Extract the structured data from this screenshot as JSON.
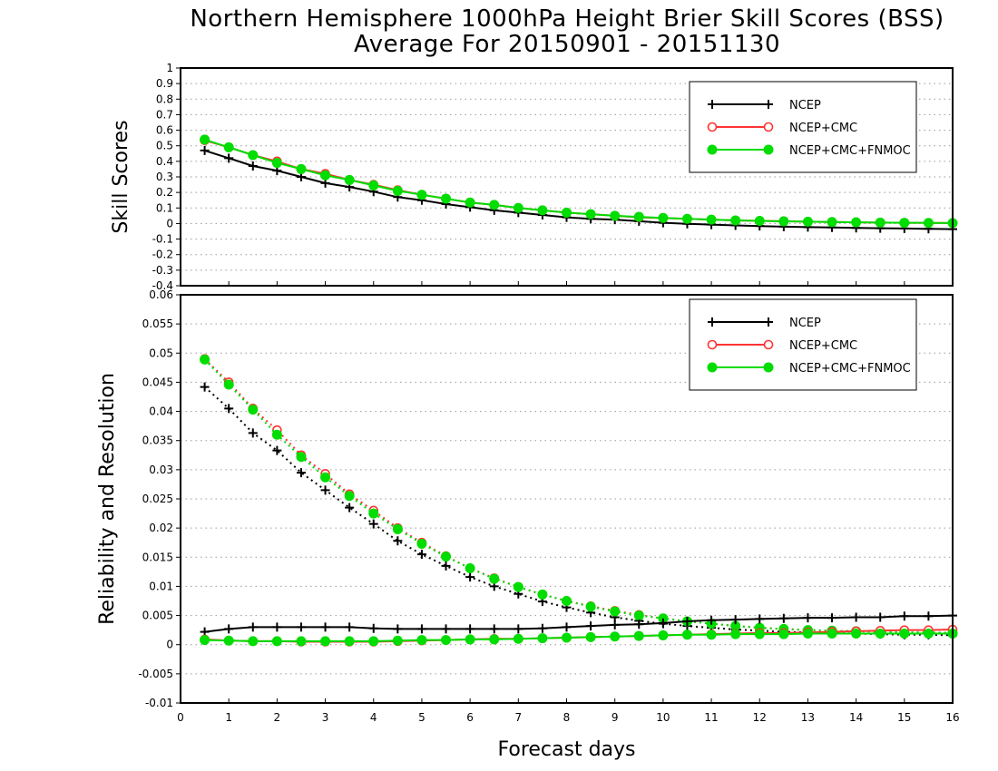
{
  "title_line1": "Northern Hemisphere 1000hPa Height Brier Skill Scores (BSS)",
  "title_line2": "Average For 20150901 - 20151130",
  "colors": {
    "ncep": "#000000",
    "ncep_cmc": "#ff3333",
    "ncep_cmc_fnmoc": "#00dd00"
  },
  "chart_data": [
    {
      "type": "line",
      "ylabel": "Skill Scores",
      "ylim": [
        -0.4,
        1
      ],
      "yticks": [
        "-0.4",
        "-0.3",
        "-0.2",
        "-0.1",
        "0",
        "0.1",
        "0.2",
        "0.3",
        "0.4",
        "0.5",
        "0.6",
        "0.7",
        "0.8",
        "0.9",
        "1"
      ],
      "xlim": [
        0,
        16
      ],
      "grid": true,
      "legend": "top-right",
      "x": [
        0.5,
        1,
        1.5,
        2,
        2.5,
        3,
        3.5,
        4,
        4.5,
        5,
        5.5,
        6,
        6.5,
        7,
        7.5,
        8,
        8.5,
        9,
        9.5,
        10,
        10.5,
        11,
        11.5,
        12,
        12.5,
        13,
        13.5,
        14,
        14.5,
        15,
        15.5,
        16
      ],
      "series": [
        {
          "name": "NCEP",
          "marker": "plus",
          "style": "solid",
          "values": [
            0.47,
            0.42,
            0.37,
            0.34,
            0.3,
            0.26,
            0.235,
            0.205,
            0.17,
            0.15,
            0.125,
            0.105,
            0.085,
            0.07,
            0.055,
            0.04,
            0.03,
            0.025,
            0.015,
            0.005,
            -0.002,
            -0.007,
            -0.012,
            -0.016,
            -0.02,
            -0.023,
            -0.025,
            -0.028,
            -0.03,
            -0.032,
            -0.034,
            -0.036
          ]
        },
        {
          "name": "NCEP+CMC",
          "marker": "open-circle",
          "style": "solid",
          "values": [
            0.535,
            0.49,
            0.44,
            0.4,
            0.35,
            0.32,
            0.28,
            0.25,
            0.215,
            0.185,
            0.16,
            0.135,
            0.12,
            0.1,
            0.085,
            0.07,
            0.06,
            0.05,
            0.04,
            0.035,
            0.03,
            0.025,
            0.02,
            0.017,
            0.015,
            0.012,
            0.01,
            0.008,
            0.006,
            0.005,
            0.004,
            0.003
          ]
        },
        {
          "name": "NCEP+CMC+FNMOC",
          "marker": "filled-circle",
          "style": "solid",
          "values": [
            0.54,
            0.49,
            0.44,
            0.39,
            0.35,
            0.31,
            0.28,
            0.245,
            0.21,
            0.185,
            0.16,
            0.135,
            0.12,
            0.1,
            0.085,
            0.07,
            0.06,
            0.05,
            0.043,
            0.036,
            0.03,
            0.025,
            0.02,
            0.017,
            0.014,
            0.012,
            0.01,
            0.008,
            0.006,
            0.005,
            0.004,
            0.003
          ]
        }
      ]
    },
    {
      "type": "line",
      "ylabel": "Reliability and Resolution",
      "xlabel": "Forecast days",
      "ylim": [
        -0.01,
        0.06
      ],
      "yticks": [
        "-0.01",
        "-0.005",
        "0",
        "0.005",
        "0.01",
        "0.015",
        "0.02",
        "0.025",
        "0.03",
        "0.035",
        "0.04",
        "0.045",
        "0.05",
        "0.055",
        "0.06"
      ],
      "xlim": [
        0,
        16
      ],
      "xticks": [
        "0",
        "1",
        "2",
        "3",
        "4",
        "5",
        "6",
        "7",
        "8",
        "9",
        "10",
        "11",
        "12",
        "13",
        "14",
        "15",
        "16"
      ],
      "grid": true,
      "legend": "top-right",
      "x": [
        0.5,
        1,
        1.5,
        2,
        2.5,
        3,
        3.5,
        4,
        4.5,
        5,
        5.5,
        6,
        6.5,
        7,
        7.5,
        8,
        8.5,
        9,
        9.5,
        10,
        10.5,
        11,
        11.5,
        12,
        12.5,
        13,
        13.5,
        14,
        14.5,
        15,
        15.5,
        16
      ],
      "series": [
        {
          "name": "NCEP",
          "marker": "plus",
          "style": "dotted",
          "quantity": "resolution",
          "values": [
            0.0442,
            0.0405,
            0.0363,
            0.0333,
            0.0295,
            0.0265,
            0.0235,
            0.0207,
            0.0178,
            0.0155,
            0.0135,
            0.0116,
            0.01,
            0.0087,
            0.0074,
            0.0064,
            0.0055,
            0.0047,
            0.0041,
            0.0036,
            0.0032,
            0.0029,
            0.0026,
            0.0024,
            0.0022,
            0.0021,
            0.002,
            0.0019,
            0.0018,
            0.0017,
            0.0017,
            0.0016
          ]
        },
        {
          "name": "NCEP+CMC",
          "marker": "open-circle",
          "style": "dotted",
          "quantity": "resolution",
          "values": [
            0.049,
            0.045,
            0.0405,
            0.0368,
            0.0325,
            0.0293,
            0.0258,
            0.023,
            0.02,
            0.0175,
            0.0152,
            0.0131,
            0.0114,
            0.0099,
            0.0086,
            0.0075,
            0.0066,
            0.0058,
            0.0051,
            0.0045,
            0.004,
            0.0036,
            0.0032,
            0.0029,
            0.0027,
            0.0025,
            0.0024,
            0.0023,
            0.0022,
            0.0021,
            0.0021,
            0.002
          ]
        },
        {
          "name": "NCEP+CMC+FNMOC",
          "marker": "filled-circle",
          "style": "dotted",
          "quantity": "resolution",
          "values": [
            0.0489,
            0.0446,
            0.0403,
            0.036,
            0.0322,
            0.0287,
            0.0255,
            0.0225,
            0.0198,
            0.0173,
            0.0151,
            0.0131,
            0.0113,
            0.0099,
            0.0086,
            0.0075,
            0.0065,
            0.0057,
            0.005,
            0.0045,
            0.004,
            0.0036,
            0.0032,
            0.0029,
            0.0027,
            0.0025,
            0.0024,
            0.0023,
            0.0022,
            0.0021,
            0.0021,
            0.002
          ]
        },
        {
          "name": "NCEP",
          "marker": "plus",
          "style": "solid",
          "quantity": "reliability",
          "values": [
            0.0022,
            0.0027,
            0.003,
            0.003,
            0.003,
            0.003,
            0.003,
            0.0028,
            0.0027,
            0.0027,
            0.0027,
            0.0027,
            0.0027,
            0.0027,
            0.0028,
            0.003,
            0.0032,
            0.0034,
            0.0035,
            0.0037,
            0.004,
            0.0042,
            0.0043,
            0.0044,
            0.0045,
            0.0046,
            0.0046,
            0.0047,
            0.0047,
            0.0049,
            0.0049,
            0.005
          ]
        },
        {
          "name": "NCEP+CMC",
          "marker": "open-circle",
          "style": "solid",
          "quantity": "reliability",
          "values": [
            0.0009,
            0.0007,
            0.0006,
            0.0006,
            0.0005,
            0.0005,
            0.0005,
            0.0005,
            0.0006,
            0.0007,
            0.0008,
            0.0009,
            0.001,
            0.001,
            0.0011,
            0.0012,
            0.0013,
            0.0014,
            0.0015,
            0.0016,
            0.0017,
            0.0018,
            0.0019,
            0.002,
            0.002,
            0.0021,
            0.0022,
            0.0023,
            0.0024,
            0.0025,
            0.0025,
            0.0026
          ]
        },
        {
          "name": "NCEP+CMC+FNMOC",
          "marker": "filled-circle",
          "style": "solid",
          "quantity": "reliability",
          "values": [
            0.0008,
            0.0007,
            0.0006,
            0.0006,
            0.0006,
            0.0006,
            0.0006,
            0.0006,
            0.0007,
            0.0008,
            0.0008,
            0.0009,
            0.0009,
            0.001,
            0.0011,
            0.0012,
            0.0013,
            0.0014,
            0.0015,
            0.0016,
            0.0017,
            0.0017,
            0.0018,
            0.0018,
            0.0018,
            0.0019,
            0.0019,
            0.0019,
            0.0019,
            0.0019,
            0.0019,
            0.0019
          ]
        }
      ]
    }
  ],
  "legend_items": [
    "NCEP",
    "NCEP+CMC",
    "NCEP+CMC+FNMOC"
  ]
}
